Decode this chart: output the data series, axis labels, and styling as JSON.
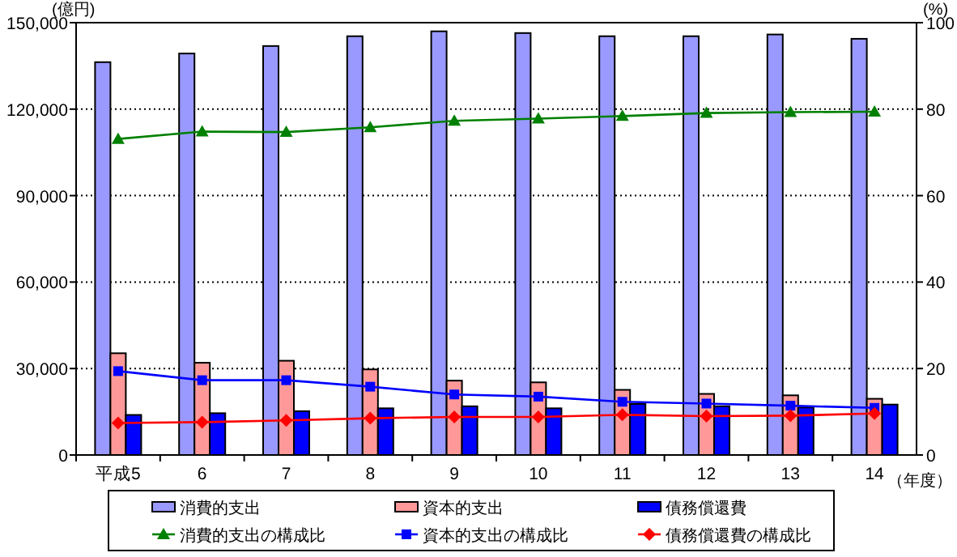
{
  "chart_data": {
    "type": "bar",
    "categories": [
      "平成5",
      "6",
      "7",
      "8",
      "9",
      "10",
      "11",
      "12",
      "13",
      "14"
    ],
    "ylabel": "(億円)",
    "y2label": "(%)",
    "xlabel": "（年度）",
    "ylim": [
      0,
      150000
    ],
    "yticks": [
      0,
      {
        "value": 30000,
        "label": "30,000"
      },
      {
        "value": 60000,
        "label": "60,000"
      },
      {
        "value": 90000,
        "label": "90,000"
      },
      {
        "value": 120000,
        "label": "120,000"
      },
      {
        "value": 150000,
        "label": "150,000"
      }
    ],
    "y2lim": [
      0,
      100
    ],
    "y2ticks": [
      0,
      20,
      40,
      60,
      80,
      100
    ],
    "grid": "y",
    "legend": "bottom",
    "series": [
      {
        "name": "消費的支出",
        "color": "#9999ff",
        "values": [
          136300,
          139300,
          141900,
          145300,
          147000,
          146400,
          145300,
          145300,
          145900,
          144400
        ]
      },
      {
        "name": "資本的支出",
        "color": "#ff9999",
        "values": [
          35300,
          32000,
          32700,
          29700,
          25800,
          25200,
          22600,
          21200,
          20700,
          19500
        ]
      },
      {
        "name": "債務償還費",
        "color": "#0000ff",
        "values": [
          13900,
          14500,
          15200,
          16200,
          16900,
          16200,
          17700,
          16900,
          16500,
          17500
        ]
      },
      {
        "name": "消費的支出の構成比",
        "type": "line",
        "axis": "y2",
        "marker": "triangle",
        "color": "#008000",
        "values": [
          73.1,
          74.8,
          74.7,
          75.8,
          77.3,
          77.8,
          78.4,
          79.1,
          79.3,
          79.4
        ]
      },
      {
        "name": "資本的支出の構成比",
        "type": "line",
        "axis": "y2",
        "marker": "square",
        "color": "#0000ff",
        "values": [
          19.4,
          17.3,
          17.3,
          15.8,
          14.0,
          13.5,
          12.3,
          11.9,
          11.4,
          10.9
        ]
      },
      {
        "name": "債務償還費の構成比",
        "type": "line",
        "axis": "y2",
        "marker": "diamond",
        "color": "#ff0000",
        "values": [
          7.4,
          7.6,
          8.0,
          8.5,
          8.8,
          8.8,
          9.3,
          9.0,
          9.1,
          9.6
        ]
      }
    ]
  }
}
